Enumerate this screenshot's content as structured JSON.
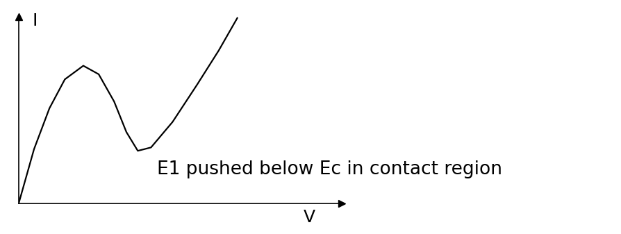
{
  "chart_data": {
    "type": "line",
    "x_label": "V",
    "y_label": "I",
    "annotation": "E1 pushed below Ec in contact region",
    "x": [
      0,
      0.5,
      1,
      1.5,
      2.1,
      2.6,
      3.1,
      3.5,
      3.87,
      4.3,
      5,
      5.8,
      6.5,
      7.1
    ],
    "values": [
      0,
      3.2,
      5.6,
      7.3,
      8.1,
      7.6,
      6.0,
      4.2,
      3.1,
      3.3,
      4.8,
      7.0,
      9.0,
      10.9
    ],
    "color": "#000000",
    "xlim": [
      0,
      10.5
    ],
    "ylim": [
      0,
      11
    ],
    "xticks": [],
    "yticks": [],
    "tick_labels": false,
    "grid": false
  }
}
